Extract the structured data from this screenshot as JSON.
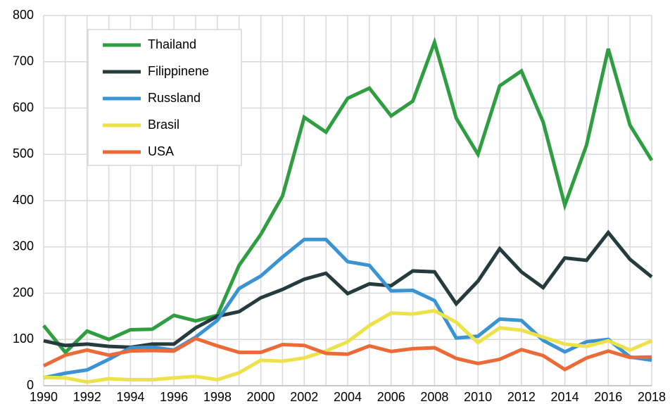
{
  "chart_data": {
    "type": "line",
    "x": [
      1990,
      1991,
      1992,
      1993,
      1994,
      1995,
      1996,
      1997,
      1998,
      1999,
      2000,
      2001,
      2002,
      2003,
      2004,
      2005,
      2006,
      2007,
      2008,
      2009,
      2010,
      2011,
      2012,
      2013,
      2014,
      2015,
      2016,
      2017,
      2018
    ],
    "series": [
      {
        "name": "Thailand",
        "color": "#2e9e40",
        "values": [
          130,
          72,
          118,
          100,
          121,
          122,
          152,
          140,
          152,
          260,
          327,
          410,
          580,
          548,
          621,
          643,
          583,
          615,
          742,
          578,
          500,
          648,
          680,
          570,
          390,
          520,
          728,
          563,
          487
        ]
      },
      {
        "name": "Filippinene",
        "color": "#253b3e",
        "values": [
          97,
          87,
          90,
          85,
          83,
          90,
          90,
          125,
          150,
          160,
          190,
          208,
          230,
          243,
          199,
          220,
          216,
          248,
          246,
          177,
          226,
          296,
          246,
          212,
          276,
          271,
          331,
          273,
          235
        ]
      },
      {
        "name": "Russland",
        "color": "#3a93d3",
        "values": [
          17,
          27,
          34,
          57,
          82,
          83,
          77,
          105,
          141,
          210,
          237,
          278,
          316,
          316,
          268,
          260,
          205,
          206,
          184,
          103,
          107,
          144,
          141,
          98,
          73,
          95,
          100,
          62,
          55
        ]
      },
      {
        "name": "Brasil",
        "color": "#eee24a",
        "values": [
          18,
          17,
          8,
          15,
          13,
          13,
          17,
          20,
          13,
          28,
          55,
          53,
          60,
          75,
          95,
          130,
          157,
          155,
          162,
          137,
          93,
          125,
          120,
          105,
          90,
          85,
          97,
          77,
          97
        ]
      },
      {
        "name": "USA",
        "color": "#ec6a35",
        "values": [
          43,
          66,
          77,
          66,
          75,
          76,
          75,
          102,
          86,
          72,
          72,
          89,
          87,
          70,
          68,
          86,
          74,
          80,
          82,
          59,
          48,
          57,
          78,
          65,
          35,
          60,
          75,
          61,
          62
        ]
      }
    ],
    "xlim": [
      1990,
      2018
    ],
    "xticks": [
      1990,
      1992,
      1994,
      1996,
      1998,
      2000,
      2002,
      2004,
      2006,
      2008,
      2010,
      2012,
      2014,
      2016,
      2018
    ],
    "ylim": [
      0,
      800
    ],
    "yticks": [
      0,
      100,
      200,
      300,
      400,
      500,
      600,
      700,
      800
    ],
    "grid": true
  }
}
